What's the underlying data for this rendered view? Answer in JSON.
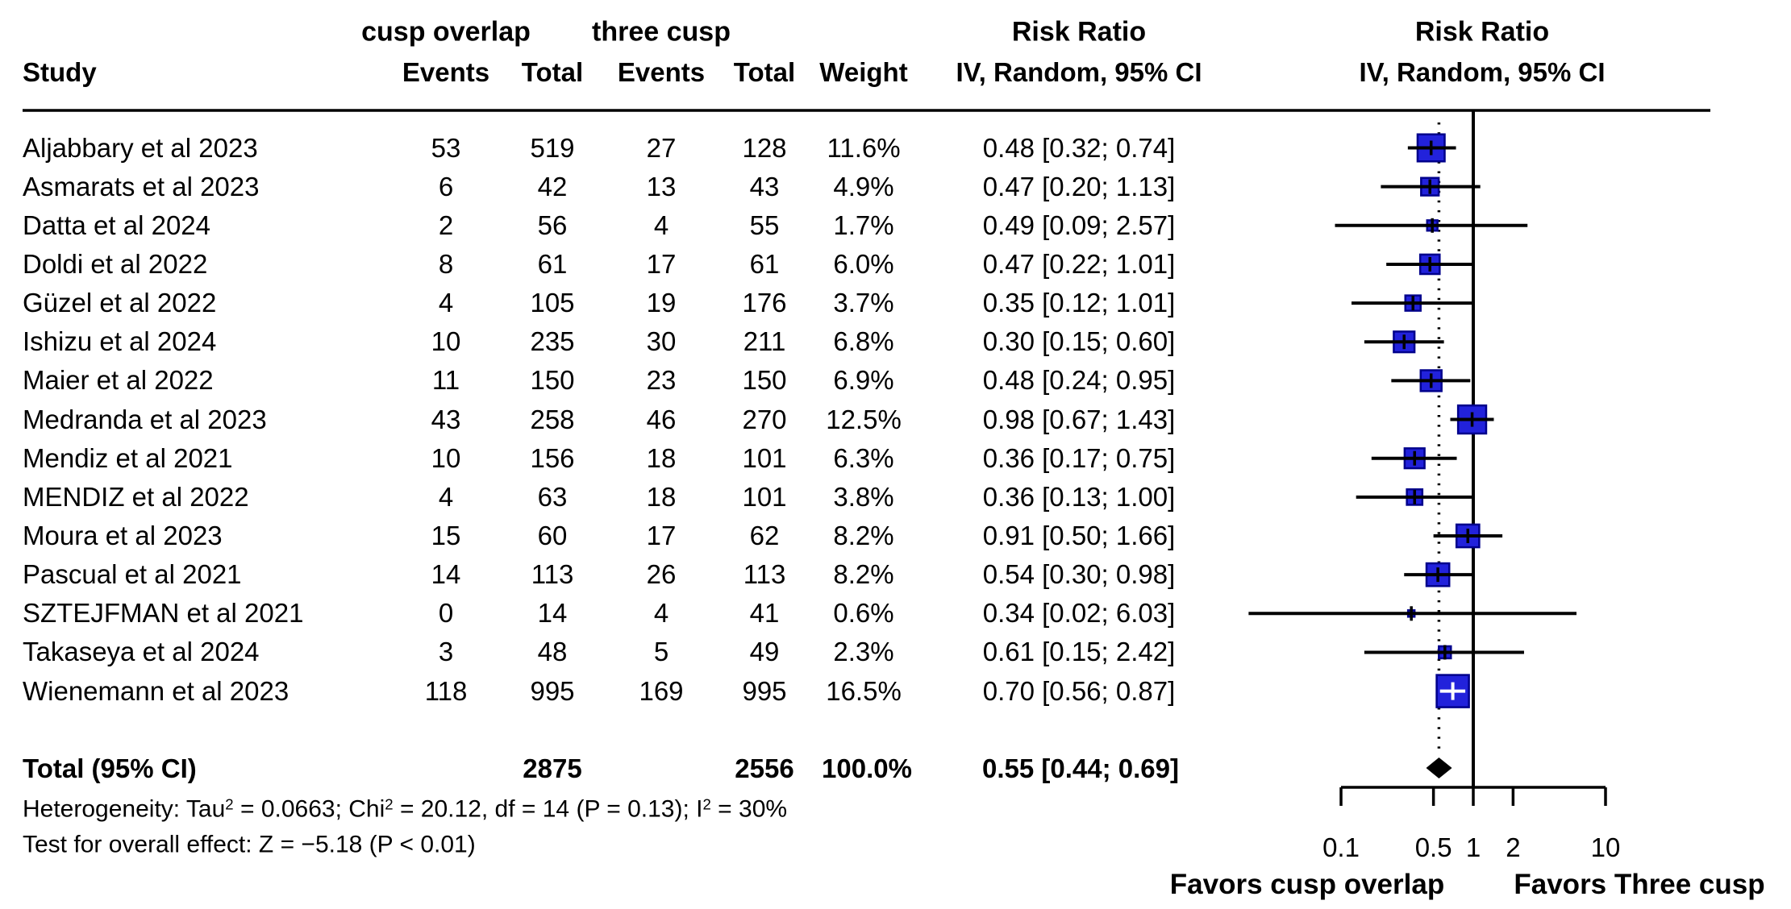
{
  "header": {
    "study": "Study",
    "group1": "cusp overlap",
    "group2": "three cusp",
    "events": "Events",
    "total": "Total",
    "weight": "Weight",
    "risk_ratio": "Risk Ratio",
    "model": "IV, Random, 95% CI"
  },
  "footer": {
    "heterogeneity_segments": [
      {
        "t": "Heterogeneity: Tau"
      },
      {
        "sup": "2"
      },
      {
        "t": " = 0.0663; Chi"
      },
      {
        "sup": "2"
      },
      {
        "t": " = 20.12, df = 14 (P = 0.13); I"
      },
      {
        "sup": "2"
      },
      {
        "t": " = 30%"
      }
    ],
    "overall_test": "Test for overall effect: Z = −5.18 (P < 0.01)"
  },
  "chart_data": {
    "type": "forest",
    "effect_measure": "Risk Ratio",
    "model": "IV, Random, 95% CI",
    "x_scale": "log",
    "x_ticks": [
      {
        "v": 0.1,
        "label": "0.1"
      },
      {
        "v": 0.5,
        "label": "0.5"
      },
      {
        "v": 1,
        "label": "1"
      },
      {
        "v": 2,
        "label": "2"
      },
      {
        "v": 10,
        "label": "10"
      }
    ],
    "xlabel_left": "Favors cusp overlap",
    "xlabel_right": "Favors Three cusp",
    "marker_fill": "#2222DB",
    "marker_stroke": "#00008B",
    "line_color": "#000000",
    "studies": [
      {
        "study": "Aljabbary et al 2023",
        "events_cusp": 53,
        "total_cusp": 519,
        "events_three": 27,
        "total_three": 128,
        "weight_pct": 11.6,
        "weight_label": "11.6%",
        "rr": 0.48,
        "ci_low": 0.32,
        "ci_high": 0.74,
        "rr_label": "0.48 [0.32; 0.74]",
        "cross": "black"
      },
      {
        "study": "Asmarats et al 2023",
        "events_cusp": 6,
        "total_cusp": 42,
        "events_three": 13,
        "total_three": 43,
        "weight_pct": 4.9,
        "weight_label": "4.9%",
        "rr": 0.47,
        "ci_low": 0.2,
        "ci_high": 1.13,
        "rr_label": "0.47 [0.20; 1.13]",
        "cross": "black"
      },
      {
        "study": "Datta et al 2024",
        "events_cusp": 2,
        "total_cusp": 56,
        "events_three": 4,
        "total_three": 55,
        "weight_pct": 1.7,
        "weight_label": "1.7%",
        "rr": 0.49,
        "ci_low": 0.09,
        "ci_high": 2.57,
        "rr_label": "0.49 [0.09; 2.57]",
        "cross": "black"
      },
      {
        "study": "Doldi et al 2022",
        "events_cusp": 8,
        "total_cusp": 61,
        "events_three": 17,
        "total_three": 61,
        "weight_pct": 6.0,
        "weight_label": "6.0%",
        "rr": 0.47,
        "ci_low": 0.22,
        "ci_high": 1.01,
        "rr_label": "0.47 [0.22; 1.01]",
        "cross": "black"
      },
      {
        "study": "Güzel et al 2022",
        "events_cusp": 4,
        "total_cusp": 105,
        "events_three": 19,
        "total_three": 176,
        "weight_pct": 3.7,
        "weight_label": "3.7%",
        "rr": 0.35,
        "ci_low": 0.12,
        "ci_high": 1.01,
        "rr_label": "0.35 [0.12; 1.01]",
        "cross": "black"
      },
      {
        "study": "Ishizu et al 2024",
        "events_cusp": 10,
        "total_cusp": 235,
        "events_three": 30,
        "total_three": 211,
        "weight_pct": 6.8,
        "weight_label": "6.8%",
        "rr": 0.3,
        "ci_low": 0.15,
        "ci_high": 0.6,
        "rr_label": "0.30 [0.15; 0.60]",
        "cross": "black"
      },
      {
        "study": "Maier et al 2022",
        "events_cusp": 11,
        "total_cusp": 150,
        "events_three": 23,
        "total_three": 150,
        "weight_pct": 6.9,
        "weight_label": "6.9%",
        "rr": 0.48,
        "ci_low": 0.24,
        "ci_high": 0.95,
        "rr_label": "0.48 [0.24; 0.95]",
        "cross": "black"
      },
      {
        "study": "Medranda et al 2023",
        "events_cusp": 43,
        "total_cusp": 258,
        "events_three": 46,
        "total_three": 270,
        "weight_pct": 12.5,
        "weight_label": "12.5%",
        "rr": 0.98,
        "ci_low": 0.67,
        "ci_high": 1.43,
        "rr_label": "0.98 [0.67; 1.43]",
        "cross": "black"
      },
      {
        "study": "Mendiz et al 2021",
        "events_cusp": 10,
        "total_cusp": 156,
        "events_three": 18,
        "total_three": 101,
        "weight_pct": 6.3,
        "weight_label": "6.3%",
        "rr": 0.36,
        "ci_low": 0.17,
        "ci_high": 0.75,
        "rr_label": "0.36 [0.17; 0.75]",
        "cross": "black"
      },
      {
        "study": "MENDIZ et al 2022",
        "events_cusp": 4,
        "total_cusp": 63,
        "events_three": 18,
        "total_three": 101,
        "weight_pct": 3.8,
        "weight_label": "3.8%",
        "rr": 0.36,
        "ci_low": 0.13,
        "ci_high": 1.0,
        "rr_label": "0.36 [0.13; 1.00]",
        "cross": "black"
      },
      {
        "study": "Moura et al 2023",
        "events_cusp": 15,
        "total_cusp": 60,
        "events_three": 17,
        "total_three": 62,
        "weight_pct": 8.2,
        "weight_label": "8.2%",
        "rr": 0.91,
        "ci_low": 0.5,
        "ci_high": 1.66,
        "rr_label": "0.91 [0.50; 1.66]",
        "cross": "black"
      },
      {
        "study": "Pascual et al 2021",
        "events_cusp": 14,
        "total_cusp": 113,
        "events_three": 26,
        "total_three": 113,
        "weight_pct": 8.2,
        "weight_label": "8.2%",
        "rr": 0.54,
        "ci_low": 0.3,
        "ci_high": 0.98,
        "rr_label": "0.54 [0.30; 0.98]",
        "cross": "black"
      },
      {
        "study": "SZTEJFMAN et al 2021",
        "events_cusp": 0,
        "total_cusp": 14,
        "events_three": 4,
        "total_three": 41,
        "weight_pct": 0.6,
        "weight_label": "0.6%",
        "rr": 0.34,
        "ci_low": 0.02,
        "ci_high": 6.03,
        "rr_label": "0.34 [0.02; 6.03]",
        "cross": "black"
      },
      {
        "study": "Takaseya et al 2024",
        "events_cusp": 3,
        "total_cusp": 48,
        "events_three": 5,
        "total_three": 49,
        "weight_pct": 2.3,
        "weight_label": "2.3%",
        "rr": 0.61,
        "ci_low": 0.15,
        "ci_high": 2.42,
        "rr_label": "0.61 [0.15; 2.42]",
        "cross": "black"
      },
      {
        "study": "Wienemann et al 2023",
        "events_cusp": 118,
        "total_cusp": 995,
        "events_three": 169,
        "total_three": 995,
        "weight_pct": 16.5,
        "weight_label": "16.5%",
        "rr": 0.7,
        "ci_low": 0.56,
        "ci_high": 0.87,
        "rr_label": "0.70 [0.56; 0.87]",
        "cross": "white"
      },
      {
        "study": "Total (95% CI)",
        "events_cusp": null,
        "total_cusp": 2875,
        "events_three": null,
        "total_three": 2556,
        "weight_pct": 100.0,
        "weight_label": "100.0%",
        "rr": 0.55,
        "ci_low": 0.44,
        "ci_high": 0.69,
        "rr_label": "0.55 [0.44; 0.69]",
        "cross": "diamond"
      }
    ],
    "total": {
      "label": "Total (95% CI)",
      "total_cusp": "2875",
      "total_three": "2556",
      "weight_label": "100.0%",
      "rr_label": "0.55 [0.44; 0.69]"
    }
  }
}
